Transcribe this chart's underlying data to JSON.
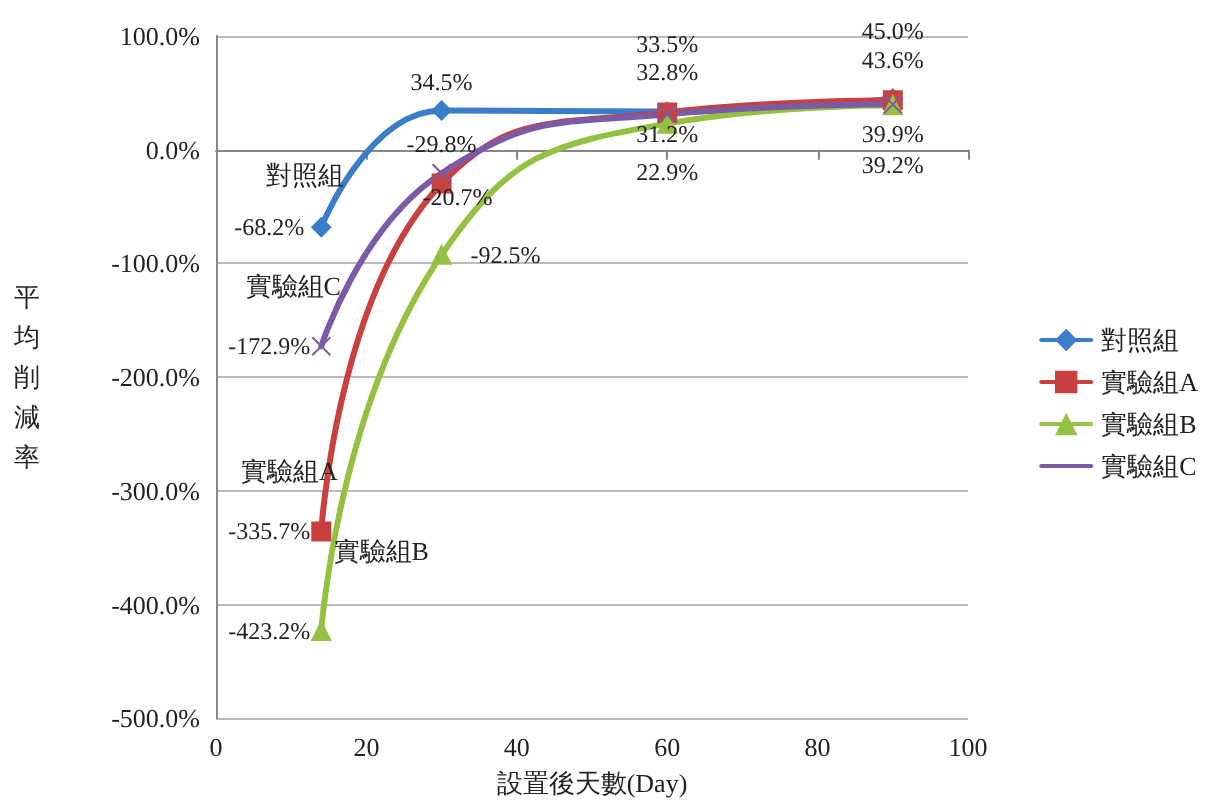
{
  "chart_data": {
    "type": "line",
    "xlabel": "設置後天數(Day)",
    "ylabel": "平均削減率",
    "x": [
      14,
      30,
      60,
      90
    ],
    "series": [
      {
        "name": "對照組",
        "color": "#3a7dc9",
        "marker": "diamond",
        "values": [
          -68.2,
          34.5,
          33.5,
          45.0
        ],
        "value_labels": [
          "-68.2%",
          "34.5%",
          "33.5%",
          "45.0%"
        ]
      },
      {
        "name": "實驗組A",
        "color": "#c8413e",
        "marker": "square",
        "values": [
          -335.7,
          -29.8,
          32.8,
          43.6
        ],
        "value_labels": [
          "-335.7%",
          "-29.8%",
          "32.8%",
          "43.6%"
        ]
      },
      {
        "name": "實驗組B",
        "color": "#95c142",
        "marker": "triangle",
        "values": [
          -423.2,
          -92.5,
          22.9,
          39.2
        ],
        "value_labels": [
          "-423.2%",
          "-92.5%",
          "22.9%",
          "39.2%"
        ]
      },
      {
        "name": "實驗組C",
        "color": "#7b5aa6",
        "marker": "cross",
        "values": [
          -172.9,
          -20.7,
          31.2,
          39.9
        ],
        "value_labels": [
          "-172.9%",
          "-20.7%",
          "31.2%",
          "39.9%"
        ]
      }
    ],
    "annotations": [
      "對照組",
      "實驗組A",
      "實驗組B",
      "實驗組C"
    ],
    "xlim": [
      0,
      100
    ],
    "xticks": [
      0,
      20,
      40,
      60,
      80,
      100
    ],
    "ylim": [
      -500,
      100
    ],
    "yticks": [
      {
        "value": -500,
        "label": "-500.0%"
      },
      {
        "value": -400,
        "label": "-400.0%"
      },
      {
        "value": -300,
        "label": "-300.0%"
      },
      {
        "value": -200,
        "label": "-200.0%"
      },
      {
        "value": -100,
        "label": "-100.0%"
      },
      {
        "value": 0,
        "label": "0.0%"
      },
      {
        "value": 100,
        "label": "100.0%"
      }
    ],
    "grid": "y",
    "legend": "right",
    "line_style": "solid"
  }
}
